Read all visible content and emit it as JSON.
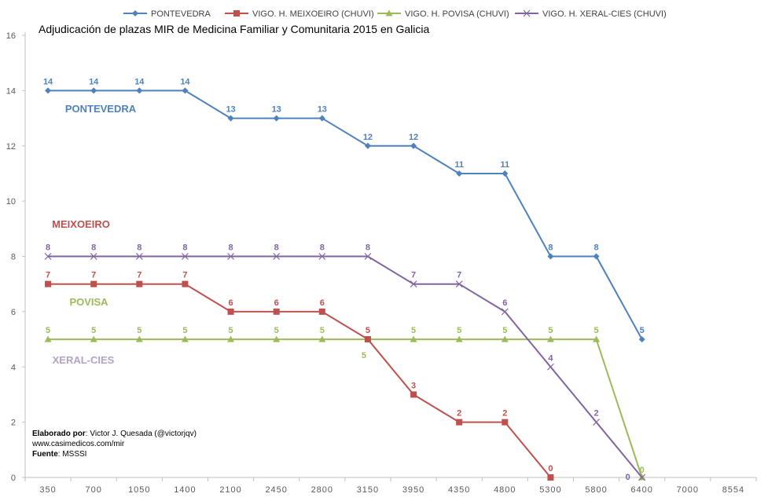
{
  "chart_data": {
    "type": "line",
    "title": "Adjudicación de plazas MIR de Medicina Familiar y Comunitaria 2015  en Galicia",
    "categories": [
      "350",
      "700",
      "1050",
      "1400",
      "2100",
      "2450",
      "2800",
      "3150",
      "3950",
      "4350",
      "4800",
      "5300",
      "5800",
      "6400",
      "7000",
      "8554"
    ],
    "ylim": [
      0,
      16
    ],
    "yticks": [
      "0",
      "2",
      "4",
      "6",
      "8",
      "10",
      "12",
      "14",
      "16"
    ],
    "grid": false,
    "legend_position": "top",
    "series": [
      {
        "name": "PONTEVEDRA",
        "label": "PONTEVEDRA",
        "color": "#4F81BD",
        "marker": "diamond",
        "values": [
          14,
          14,
          14,
          14,
          13,
          13,
          13,
          12,
          12,
          11,
          11,
          8,
          8,
          5,
          null,
          null
        ]
      },
      {
        "name": "VIGO. H. MEIXOEIRO (CHUVI)",
        "label": "MEIXOEIRO",
        "color": "#C0504D",
        "marker": "square",
        "values": [
          7,
          7,
          7,
          7,
          6,
          6,
          6,
          5,
          3,
          2,
          2,
          0,
          null,
          null,
          null,
          null
        ]
      },
      {
        "name": "VIGO. H. POVISA (CHUVI)",
        "label": "POVISA",
        "color": "#9BBB59",
        "marker": "triangle",
        "values": [
          5,
          5,
          5,
          5,
          5,
          5,
          5,
          5,
          5,
          5,
          5,
          5,
          5,
          0,
          null,
          null
        ]
      },
      {
        "name": "VIGO. H. XERAL-CIES (CHUVI)",
        "label": "XERAL-CIES",
        "color": "#8064A2",
        "marker": "x",
        "values": [
          8,
          8,
          8,
          8,
          8,
          8,
          8,
          8,
          7,
          7,
          6,
          4,
          2,
          0,
          null,
          null
        ]
      }
    ],
    "credits": {
      "author_label": "Elaborado por",
      "author": ": Victor J. Quesada (@victorjqv)",
      "website": "www.casimedicos.com/mir",
      "source_label": "Fuente",
      "source": ": MSSSI"
    }
  }
}
